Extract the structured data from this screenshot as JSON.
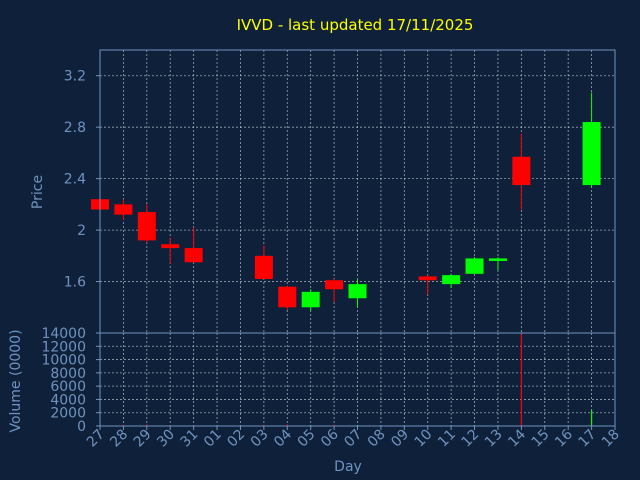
{
  "colors": {
    "background": "#0f213a",
    "title": "#ffff00",
    "text": "#6f93c0",
    "axis": "#6f93c0",
    "grid": "#c9cfd8",
    "up": "#00ff00",
    "down": "#ff0000"
  },
  "chart_data": {
    "type": "candlestick",
    "title": "IVVD - last updated 17/11/2025",
    "xlabel": "Day",
    "grid": true,
    "x_ticks": [
      "27",
      "28",
      "29",
      "30",
      "31",
      "01",
      "02",
      "03",
      "04",
      "05",
      "06",
      "07",
      "08",
      "09",
      "10",
      "11",
      "12",
      "13",
      "14",
      "15",
      "16",
      "17",
      "18"
    ],
    "price": {
      "ylabel": "Price",
      "ylim": [
        1.2,
        3.4
      ],
      "yticks": [
        "1.6",
        "2",
        "2.4",
        "2.8",
        "3.2"
      ],
      "ytick_values": [
        1.6,
        2.0,
        2.4,
        2.8,
        3.2
      ],
      "candles": [
        {
          "day": "27",
          "open": 2.24,
          "high": 2.25,
          "low": 2.15,
          "close": 2.16
        },
        {
          "day": "28",
          "open": 2.2,
          "high": 2.24,
          "low": 2.08,
          "close": 2.12
        },
        {
          "day": "29",
          "open": 2.14,
          "high": 2.2,
          "low": 1.9,
          "close": 1.92
        },
        {
          "day": "30",
          "open": 1.89,
          "high": 1.94,
          "low": 1.74,
          "close": 1.86
        },
        {
          "day": "31",
          "open": 1.86,
          "high": 2.02,
          "low": 1.75,
          "close": 1.75
        },
        {
          "day": "03",
          "open": 1.8,
          "high": 1.88,
          "low": 1.62,
          "close": 1.62
        },
        {
          "day": "04",
          "open": 1.56,
          "high": 1.57,
          "low": 1.38,
          "close": 1.4
        },
        {
          "day": "05",
          "open": 1.4,
          "high": 1.54,
          "low": 1.37,
          "close": 1.52
        },
        {
          "day": "06",
          "open": 1.61,
          "high": 1.62,
          "low": 1.44,
          "close": 1.54
        },
        {
          "day": "07",
          "open": 1.47,
          "high": 1.62,
          "low": 1.4,
          "close": 1.58
        },
        {
          "day": "10",
          "open": 1.64,
          "high": 1.65,
          "low": 1.5,
          "close": 1.61
        },
        {
          "day": "11",
          "open": 1.58,
          "high": 1.66,
          "low": 1.55,
          "close": 1.65
        },
        {
          "day": "12",
          "open": 1.66,
          "high": 1.79,
          "low": 1.66,
          "close": 1.78
        },
        {
          "day": "13",
          "open": 1.76,
          "high": 1.79,
          "low": 1.69,
          "close": 1.78
        },
        {
          "day": "14",
          "open": 2.57,
          "high": 2.75,
          "low": 2.16,
          "close": 2.35
        },
        {
          "day": "17",
          "open": 2.35,
          "high": 3.07,
          "low": 2.33,
          "close": 2.84
        }
      ]
    },
    "volume": {
      "ylabel": "Volume (0000)",
      "ylim": [
        0,
        14000
      ],
      "yticks": [
        "0",
        "2000",
        "4000",
        "6000",
        "8000",
        "10000",
        "12000",
        "14000"
      ],
      "ytick_values": [
        0,
        2000,
        4000,
        6000,
        8000,
        10000,
        12000,
        14000
      ],
      "bars": [
        {
          "day": "27",
          "value": 30,
          "up": false
        },
        {
          "day": "28",
          "value": 200,
          "up": false
        },
        {
          "day": "29",
          "value": 250,
          "up": false
        },
        {
          "day": "30",
          "value": 150,
          "up": false
        },
        {
          "day": "31",
          "value": 120,
          "up": false
        },
        {
          "day": "03",
          "value": 200,
          "up": false
        },
        {
          "day": "04",
          "value": 250,
          "up": false
        },
        {
          "day": "05",
          "value": 150,
          "up": true
        },
        {
          "day": "06",
          "value": 200,
          "up": false
        },
        {
          "day": "07",
          "value": 150,
          "up": true
        },
        {
          "day": "10",
          "value": 100,
          "up": false
        },
        {
          "day": "11",
          "value": 120,
          "up": true
        },
        {
          "day": "12",
          "value": 100,
          "up": true
        },
        {
          "day": "13",
          "value": 100,
          "up": true
        },
        {
          "day": "14",
          "value": 13800,
          "up": false
        },
        {
          "day": "17",
          "value": 2400,
          "up": true
        }
      ]
    }
  }
}
